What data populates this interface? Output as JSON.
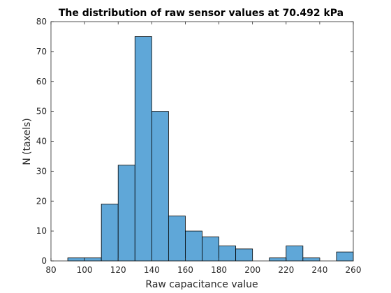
{
  "chart_data": {
    "type": "bar",
    "title": "The distribution of raw sensor values at 70.492 kPa",
    "xlabel": "Raw capacitance value",
    "ylabel": "N (taxels)",
    "xlim": [
      80,
      260
    ],
    "ylim": [
      0,
      80
    ],
    "xticks": [
      80,
      100,
      120,
      140,
      160,
      180,
      200,
      220,
      240,
      260
    ],
    "yticks": [
      0,
      10,
      20,
      30,
      40,
      50,
      60,
      70,
      80
    ],
    "bin_width": 10,
    "bin_edges": [
      90,
      100,
      110,
      120,
      130,
      140,
      150,
      160,
      170,
      180,
      190,
      200,
      210,
      220,
      230,
      240,
      250,
      260
    ],
    "counts": [
      1,
      1,
      19,
      32,
      75,
      50,
      15,
      10,
      8,
      5,
      4,
      0,
      1,
      5,
      1,
      0,
      3
    ],
    "bar_color": "#5fa7d8",
    "bar_edge_color": "#000000",
    "grid": false,
    "box": true
  }
}
